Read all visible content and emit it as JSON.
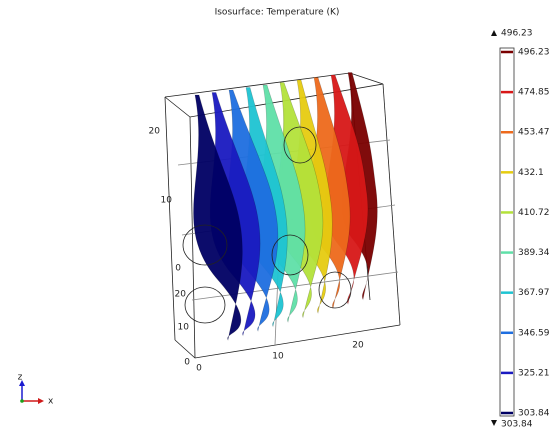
{
  "title": "Isosurface: Temperature (K)",
  "colorbar": {
    "max": 496.23,
    "min": 303.84,
    "ticks": [
      {
        "value": 496.23,
        "color": "#7a0000"
      },
      {
        "value": 474.85,
        "color": "#d81818"
      },
      {
        "value": 453.47,
        "color": "#ee6a1c"
      },
      {
        "value": 432.1,
        "color": "#e6cc10"
      },
      {
        "value": 410.72,
        "color": "#b4e23a"
      },
      {
        "value": 389.34,
        "color": "#5fe0a8"
      },
      {
        "value": 367.97,
        "color": "#1ec4d2"
      },
      {
        "value": 346.59,
        "color": "#1e6ee0"
      },
      {
        "value": 325.21,
        "color": "#1a1ac0"
      },
      {
        "value": 303.84,
        "color": "#000064"
      }
    ]
  },
  "axes": {
    "z_ticks": [
      "20",
      "10",
      "0"
    ],
    "y_ticks": [
      "20",
      "10",
      "0"
    ],
    "x_ticks": [
      "0",
      "10",
      "20"
    ],
    "triad": {
      "z": "z",
      "x": "x"
    }
  }
}
